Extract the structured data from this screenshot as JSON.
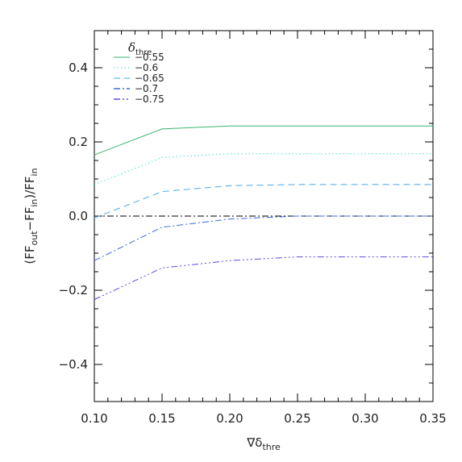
{
  "chart_data": {
    "type": "line",
    "title": "",
    "xlabel": {
      "main": "∇δ",
      "sub": "thre"
    },
    "ylabel": {
      "open": "(FF",
      "sub1": "out",
      "minus": "−FF",
      "sub2": "in",
      "close": ")/FF",
      "sub3": "in"
    },
    "xlim": [
      0.1,
      0.35
    ],
    "ylim": [
      -0.5,
      0.5
    ],
    "xticks": [
      0.1,
      0.15,
      0.2,
      0.25,
      0.3,
      0.35
    ],
    "xtick_labels": [
      "0.10",
      "0.15",
      "0.20",
      "0.25",
      "0.30",
      "0.35"
    ],
    "yticks": [
      -0.4,
      -0.2,
      0.0,
      0.2,
      0.4
    ],
    "ytick_labels": [
      "−0.4",
      "−0.2",
      "0.0",
      "0.2",
      "0.4"
    ],
    "grid": false,
    "legend": {
      "position": "top-left",
      "title_main": "δ",
      "title_sub": "thre"
    },
    "x": [
      0.1,
      0.15,
      0.2,
      0.25,
      0.3,
      0.35
    ],
    "series": [
      {
        "name": "−0.55",
        "values": [
          0.165,
          0.235,
          0.243,
          0.243,
          0.243,
          0.243
        ],
        "color": "#3cb371",
        "dash": "solid"
      },
      {
        "name": "−0.6",
        "values": [
          0.085,
          0.158,
          0.168,
          0.168,
          0.168,
          0.168
        ],
        "color": "#40e0d0",
        "dash": "dotted"
      },
      {
        "name": "−0.65",
        "values": [
          -0.005,
          0.066,
          0.082,
          0.085,
          0.085,
          0.085
        ],
        "color": "#4aa8e8",
        "dash": "dashed"
      },
      {
        "name": "−0.7",
        "values": [
          -0.12,
          -0.03,
          -0.008,
          0.0,
          0.0,
          0.0
        ],
        "color": "#3c6cd8",
        "dash": "dashdot"
      },
      {
        "name": "−0.75",
        "values": [
          -0.225,
          -0.14,
          -0.12,
          -0.11,
          -0.11,
          -0.11
        ],
        "color": "#5a4ce0",
        "dash": "dashdotdotdot"
      }
    ],
    "reference_line": {
      "y": 0.0,
      "color": "#000000"
    }
  }
}
